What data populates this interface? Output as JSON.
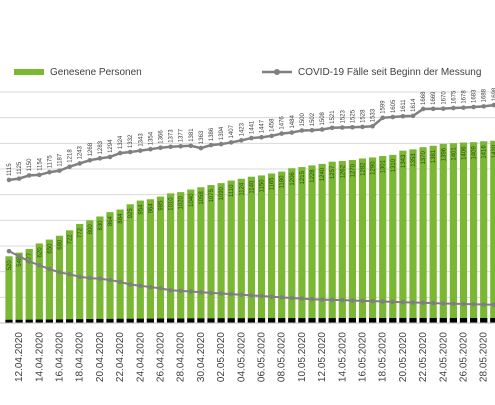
{
  "legend": {
    "bars_label": "Genesene Personen",
    "line_label": "COVID-19 Fälle seit Beginn der Messung"
  },
  "colors": {
    "bars": "#7ab833",
    "cumulative_line": "#808080",
    "active_line": "#7f7f7f",
    "deaths_bar": "#000000",
    "grid": "#d9d9d9",
    "text": "#404040"
  },
  "chart_data": {
    "type": "bar",
    "title": "",
    "xlabel": "",
    "ylabel": "",
    "legend_position": "top",
    "grid": true,
    "ylim": [
      0,
      1800
    ],
    "x_tick_labels": [
      "12.04.2020",
      "14.04.2020",
      "16.04.2020",
      "18.04.2020",
      "20.04.2020",
      "22.04.2020",
      "24.04.2020",
      "26.04.2020",
      "28.04.2020",
      "30.04.2020",
      "02.05.2020",
      "04.05.2020",
      "06.05.2020",
      "08.05.2020",
      "10.05.2020",
      "12.05.2020",
      "14.05.2020",
      "16.05.2020",
      "18.05.2020",
      "20.05.2020",
      "22.05.2020",
      "24.05.2020",
      "26.05.2020",
      "28.05.2020"
    ],
    "categories": [
      "11.04.",
      "12.04.",
      "13.04.",
      "14.04.",
      "15.04.",
      "16.04.",
      "17.04.",
      "18.04.",
      "19.04.",
      "20.04.",
      "21.04.",
      "22.04.",
      "23.04.",
      "24.04.",
      "25.04.",
      "26.04.",
      "27.04.",
      "28.04.",
      "29.04.",
      "30.04.",
      "01.05.",
      "02.05.",
      "03.05.",
      "04.05.",
      "05.05.",
      "06.05.",
      "07.05.",
      "08.05.",
      "09.05.",
      "10.05.",
      "11.05.",
      "12.05.",
      "13.05.",
      "14.05.",
      "15.05.",
      "16.05.",
      "17.05.",
      "18.05.",
      "19.05.",
      "20.05.",
      "21.05.",
      "22.05.",
      "23.05.",
      "24.05.",
      "25.05.",
      "26.05.",
      "27.05.",
      "28.05.",
      "29.05."
    ],
    "series": [
      {
        "name": "Genesene Personen",
        "type": "bar",
        "values": [
          520,
          548,
          577,
          620,
          650,
          680,
          722,
          772,
          800,
          830,
          864,
          884,
          925,
          954,
          964,
          985,
          1010,
          1020,
          1040,
          1058,
          1075,
          1090,
          1110,
          1124,
          1140,
          1150,
          1165,
          1180,
          1206,
          1215,
          1228,
          1240,
          1257,
          1262,
          1270,
          1282,
          1290,
          1301,
          1310,
          1343,
          1353,
          1370,
          1381,
          1396,
          1401,
          1406,
          1409,
          1416,
          1420
        ]
      },
      {
        "name": "COVID-19 Fälle seit Beginn der Messung",
        "type": "line",
        "values": [
          1115,
          1125,
          1150,
          1154,
          1175,
          1187,
          1218,
          1243,
          1268,
          1283,
          1294,
          1324,
          1332,
          1343,
          1354,
          1366,
          1373,
          1377,
          1381,
          1363,
          1386,
          1394,
          1407,
          1423,
          1441,
          1447,
          1458,
          1476,
          1484,
          1500,
          1502,
          1508,
          1521,
          1523,
          1525,
          1528,
          1533,
          1599,
          1605,
          1611,
          1614,
          1668,
          1669,
          1670,
          1675,
          1678,
          1683,
          1688,
          1698
        ]
      },
      {
        "type": "line",
        "values": [
          560,
          520,
          480,
          450,
          420,
          395,
          380,
          360,
          350,
          345,
          335,
          320,
          300,
          290,
          280,
          270,
          255,
          250,
          245,
          240,
          235,
          230,
          225,
          220,
          215,
          210,
          205,
          200,
          195,
          190,
          185,
          182,
          180,
          178,
          175,
          172,
          170,
          168,
          165,
          162,
          160,
          158,
          155,
          152,
          150,
          148,
          146,
          144,
          142
        ]
      }
    ],
    "deaths_values": [
      25,
      25,
      26,
      27,
      27,
      28,
      29,
      30,
      31,
      32,
      32,
      33,
      33,
      34,
      34,
      35,
      35,
      35,
      36,
      36,
      36,
      37,
      37,
      37,
      37,
      38,
      38,
      38,
      38,
      38,
      38,
      38,
      38,
      39,
      39,
      39,
      39,
      39,
      39,
      39,
      39,
      39,
      39,
      39,
      39,
      39,
      39,
      39,
      39
    ]
  }
}
